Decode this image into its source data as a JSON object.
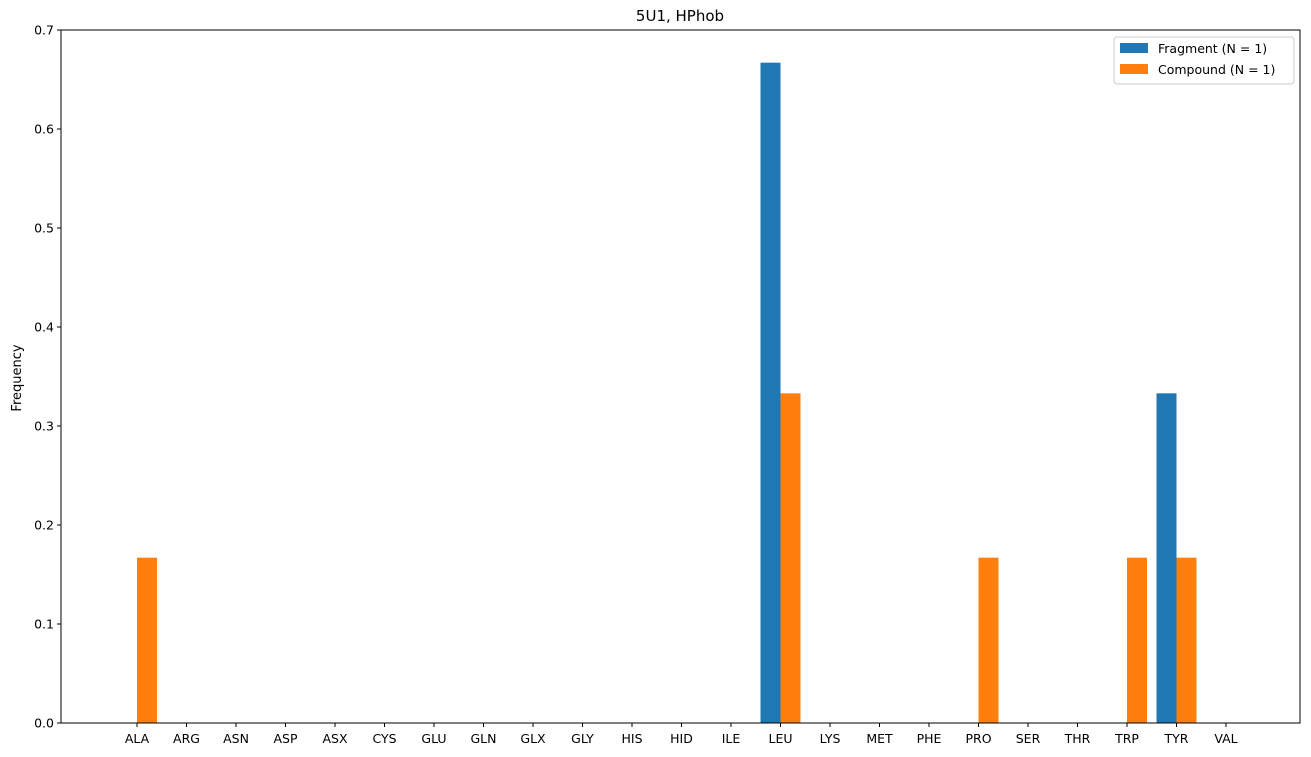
{
  "chart_data": {
    "type": "bar",
    "title": "5U1, HPhob",
    "xlabel": "",
    "ylabel": "Frequency",
    "ylim": [
      0,
      0.7
    ],
    "yticks": [
      "0.0",
      "0.1",
      "0.2",
      "0.3",
      "0.4",
      "0.5",
      "0.6",
      "0.7"
    ],
    "grid": false,
    "legend_position": "top-right",
    "categories": [
      "ALA",
      "ARG",
      "ASN",
      "ASP",
      "ASX",
      "CYS",
      "GLU",
      "GLN",
      "GLX",
      "GLY",
      "HIS",
      "HID",
      "ILE",
      "LEU",
      "LYS",
      "MET",
      "PHE",
      "PRO",
      "SER",
      "THR",
      "TRP",
      "TYR",
      "VAL"
    ],
    "series": [
      {
        "name": "Fragment (N = 1)",
        "color": "#1f77b4",
        "values": [
          0,
          0,
          0,
          0,
          0,
          0,
          0,
          0,
          0,
          0,
          0,
          0,
          0,
          0.667,
          0,
          0,
          0,
          0,
          0,
          0,
          0,
          0.333,
          0
        ]
      },
      {
        "name": "Compound (N = 1)",
        "color": "#ff7f0e",
        "values": [
          0.167,
          0,
          0,
          0,
          0,
          0,
          0,
          0,
          0,
          0,
          0,
          0,
          0,
          0.333,
          0,
          0,
          0,
          0.167,
          0,
          0,
          0.167,
          0.167,
          0
        ]
      }
    ]
  }
}
